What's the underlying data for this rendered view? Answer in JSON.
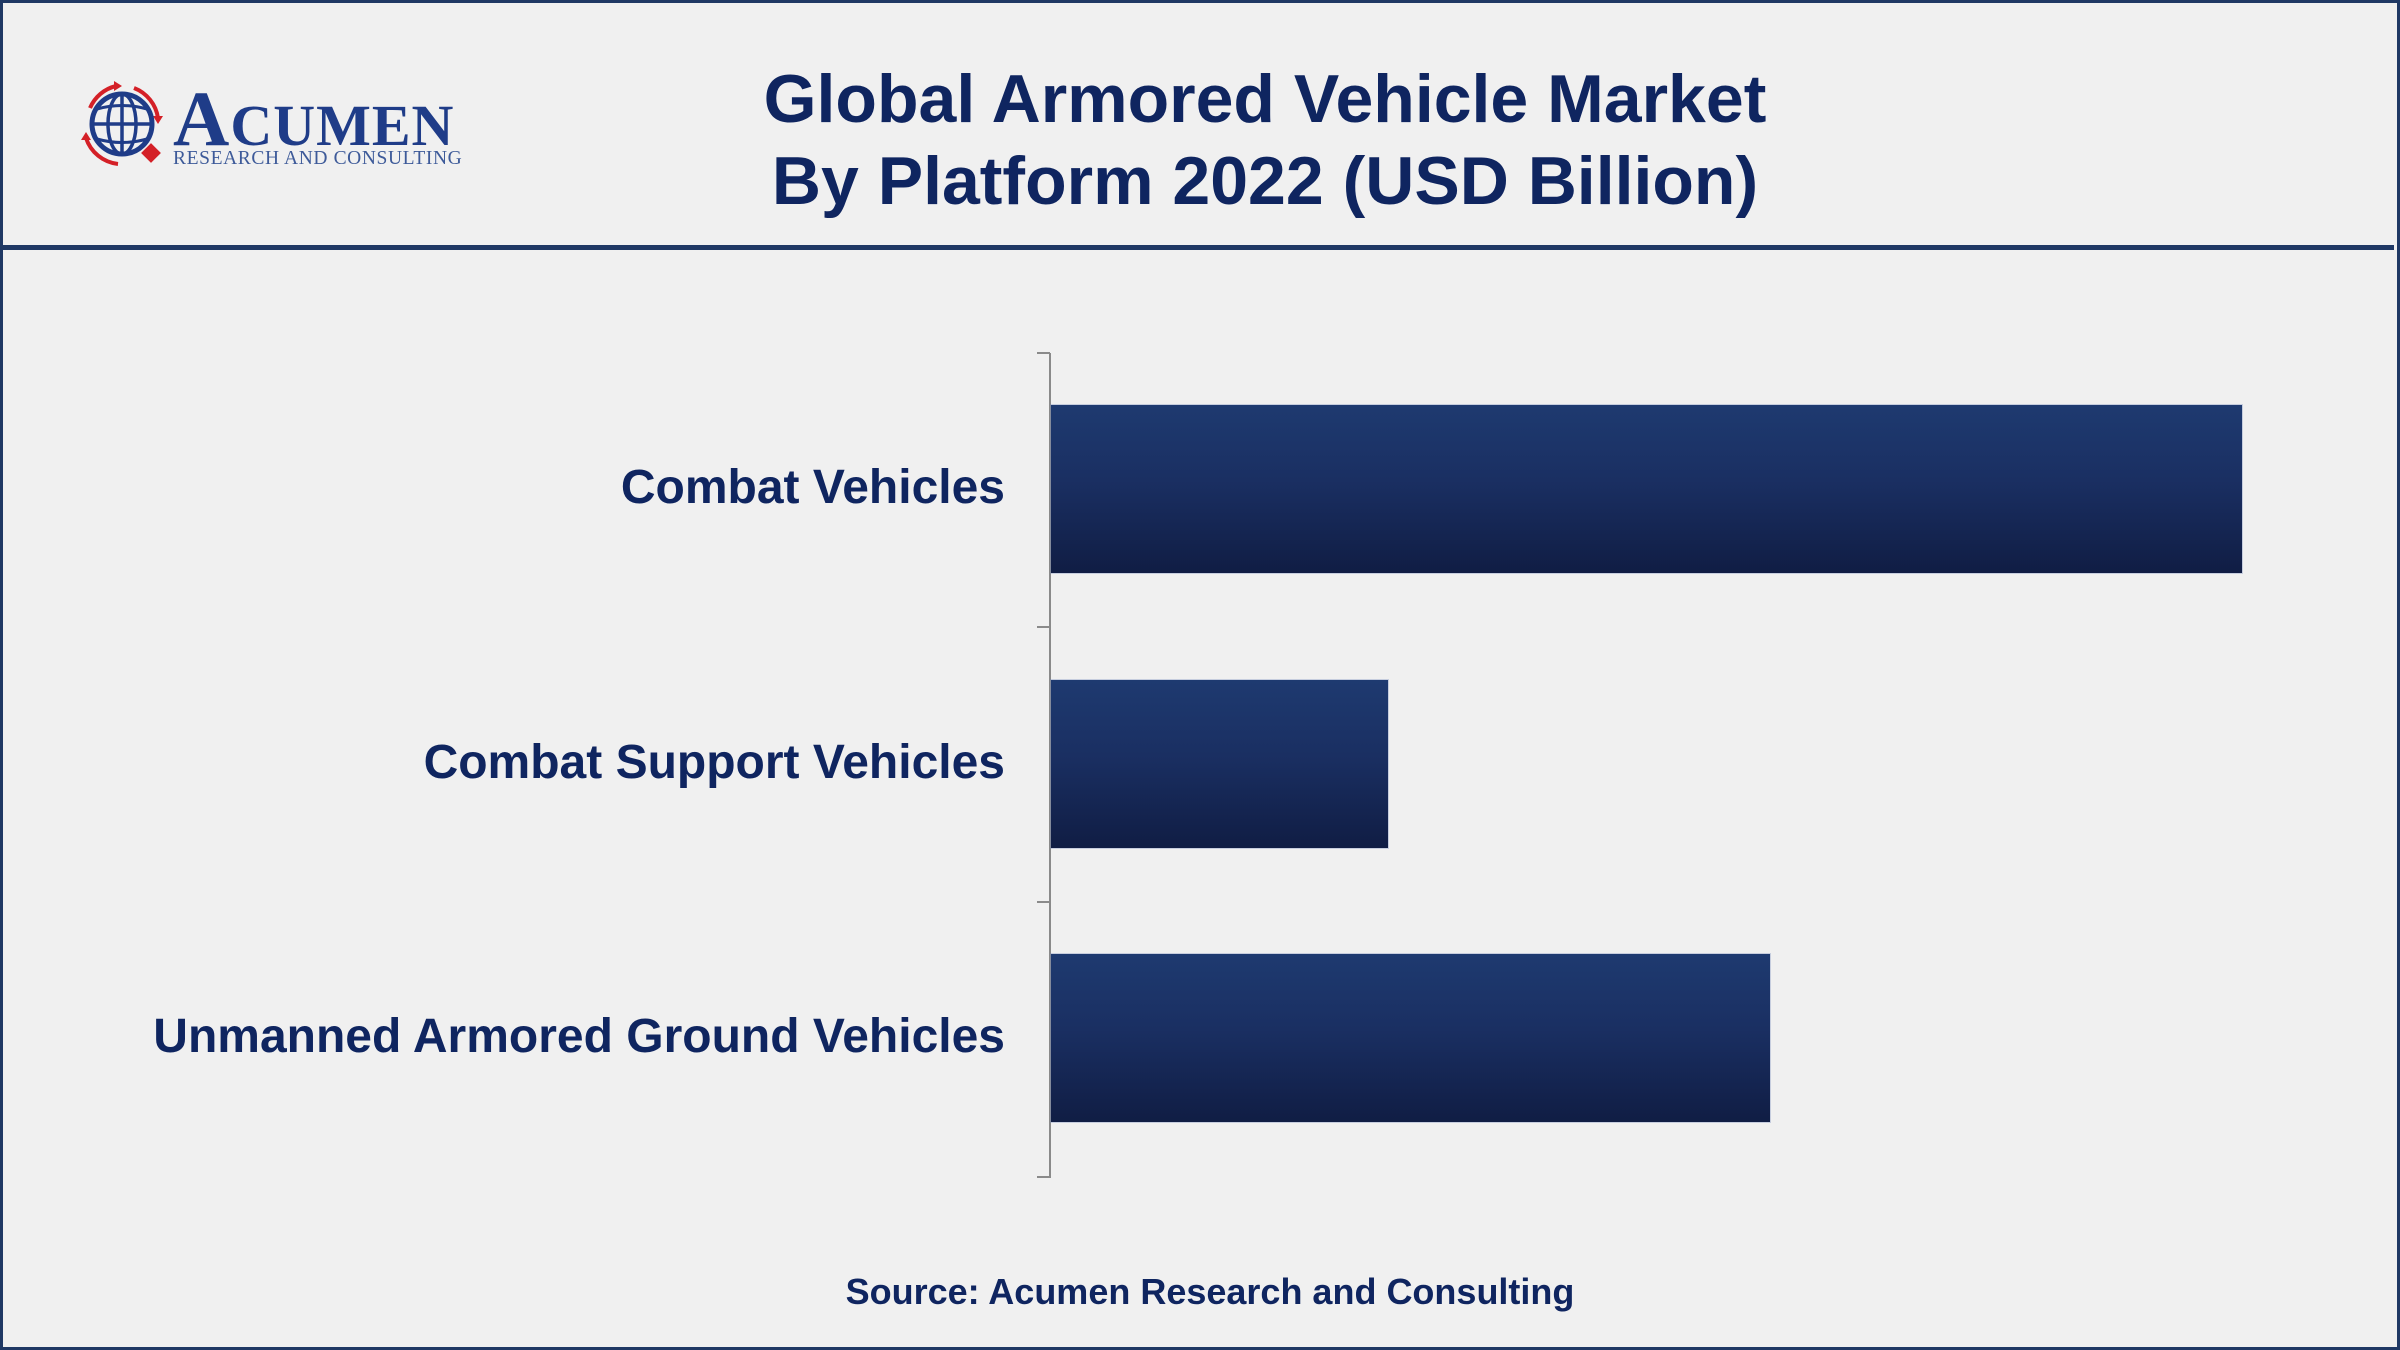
{
  "header": {
    "logo": {
      "word": "ACUMEN",
      "word_initial": "A",
      "word_rest": "CUMEN",
      "subtitle": "RESEARCH AND CONSULTING"
    },
    "title_line1": "Global Armored Vehicle Market",
    "title_line2": "By Platform 2022 (USD Billion)"
  },
  "footer": {
    "source": "Source: Acumen Research and Consulting"
  },
  "colors": {
    "frame": "#1f3864",
    "bar_top": "#1e3a70",
    "bar_bottom": "#101d44",
    "text": "#0f2560",
    "background": "#f0f0f0"
  },
  "chart_data": {
    "type": "bar",
    "orientation": "horizontal",
    "title": "Global Armored Vehicle Market By Platform 2022 (USD Billion)",
    "xlabel": "",
    "ylabel": "",
    "categories": [
      "Combat Vehicles",
      "Combat Support Vehicles",
      "Unmanned Armored Ground Vehicles"
    ],
    "values": [
      100,
      28.3,
      60.4
    ],
    "value_note": "No value axis or data labels shown; values are relative bar lengths (Combat Vehicles = 100)",
    "grid": false,
    "legend": null,
    "source": "Source: Acumen Research and Consulting"
  }
}
